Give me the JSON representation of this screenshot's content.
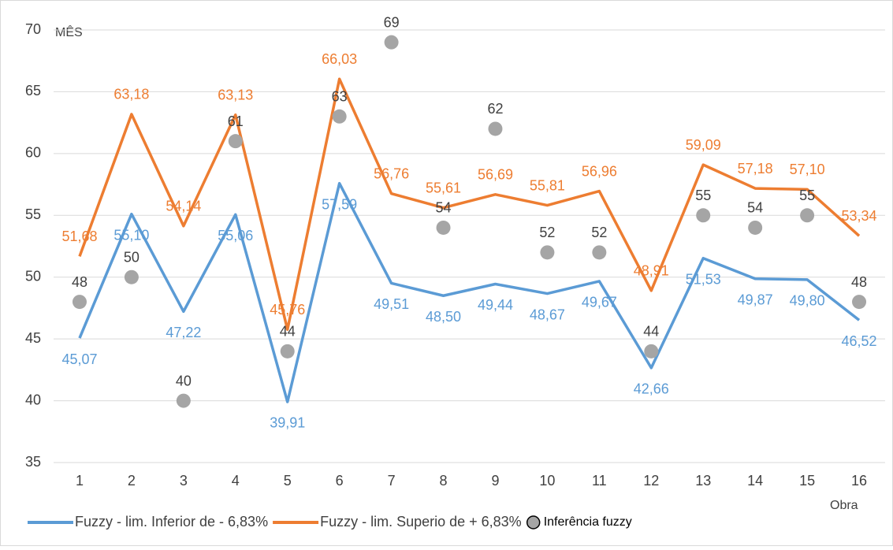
{
  "chart_data": {
    "type": "line",
    "y_label": "MÊS",
    "x_label": "Obra",
    "categories": [
      "1",
      "2",
      "3",
      "4",
      "5",
      "6",
      "7",
      "8",
      "9",
      "10",
      "11",
      "12",
      "13",
      "14",
      "15",
      "16"
    ],
    "ylim": [
      35,
      70
    ],
    "yticks": [
      35,
      40,
      45,
      50,
      55,
      60,
      65,
      70
    ],
    "grid": true,
    "legend": "bottom",
    "series": [
      {
        "name": "Fuzzy - lim. Inferior de  - 6,83%",
        "color": "#5b9bd5",
        "type": "line",
        "values": [
          45.07,
          55.1,
          47.22,
          55.06,
          39.91,
          57.59,
          49.51,
          48.5,
          49.44,
          48.67,
          49.67,
          42.66,
          51.53,
          49.87,
          49.8,
          46.52
        ],
        "value_labels": [
          "45,07",
          "55,10",
          "47,22",
          "55,06",
          "39,91",
          "57,59",
          "49,51",
          "48,50",
          "49,44",
          "48,67",
          "49,67",
          "42,66",
          "51,53",
          "49,87",
          "49,80",
          "46,52"
        ]
      },
      {
        "name": "Fuzzy - lim. Superio de + 6,83%",
        "color": "#ed7d31",
        "type": "line",
        "values": [
          51.68,
          63.18,
          54.14,
          63.13,
          45.76,
          66.03,
          56.76,
          55.61,
          56.69,
          55.81,
          56.96,
          48.91,
          59.09,
          57.18,
          57.1,
          53.34
        ],
        "value_labels": [
          "51,68",
          "63,18",
          "54,14",
          "63,13",
          "45,76",
          "66,03",
          "56,76",
          "55,61",
          "56,69",
          "55,81",
          "56,96",
          "48,91",
          "59,09",
          "57,18",
          "57,10",
          "53,34"
        ]
      },
      {
        "name": "Inferência fuzzy",
        "color": "#a5a5a5",
        "type": "scatter",
        "values": [
          48,
          50,
          40,
          61,
          44,
          63,
          69,
          54,
          62,
          52,
          52,
          44,
          55,
          54,
          55,
          48
        ]
      }
    ]
  }
}
